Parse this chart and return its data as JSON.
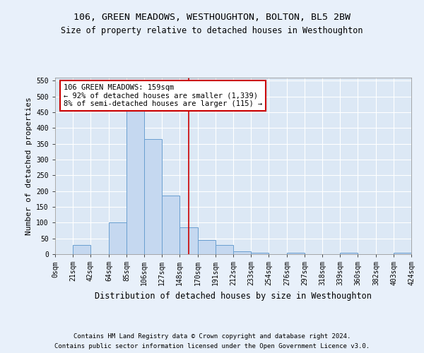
{
  "title": "106, GREEN MEADOWS, WESTHOUGHTON, BOLTON, BL5 2BW",
  "subtitle": "Size of property relative to detached houses in Westhoughton",
  "xlabel": "Distribution of detached houses by size in Westhoughton",
  "ylabel": "Number of detached properties",
  "footnote1": "Contains HM Land Registry data © Crown copyright and database right 2024.",
  "footnote2": "Contains public sector information licensed under the Open Government Licence v3.0.",
  "bin_edges": [
    0,
    21,
    42,
    64,
    85,
    106,
    127,
    148,
    170,
    191,
    212,
    233,
    254,
    276,
    297,
    318,
    339,
    360,
    382,
    403,
    424
  ],
  "bin_labels": [
    "0sqm",
    "21sqm",
    "42sqm",
    "64sqm",
    "85sqm",
    "106sqm",
    "127sqm",
    "148sqm",
    "170sqm",
    "191sqm",
    "212sqm",
    "233sqm",
    "254sqm",
    "276sqm",
    "297sqm",
    "318sqm",
    "339sqm",
    "360sqm",
    "382sqm",
    "403sqm",
    "424sqm"
  ],
  "bar_heights": [
    0,
    30,
    0,
    100,
    510,
    365,
    185,
    85,
    45,
    30,
    10,
    5,
    0,
    5,
    0,
    0,
    5,
    0,
    0,
    5
  ],
  "bar_color": "#c5d8f0",
  "bar_edge_color": "#6a9fd0",
  "property_line_x": 159,
  "property_line_color": "#cc0000",
  "annotation_text": "106 GREEN MEADOWS: 159sqm\n← 92% of detached houses are smaller (1,339)\n8% of semi-detached houses are larger (115) →",
  "annotation_box_color": "#ffffff",
  "annotation_box_edge": "#cc0000",
  "ylim": [
    0,
    560
  ],
  "yticks": [
    0,
    50,
    100,
    150,
    200,
    250,
    300,
    350,
    400,
    450,
    500,
    550
  ],
  "background_color": "#e8f0fa",
  "plot_background": "#dce8f5",
  "title_fontsize": 9.5,
  "subtitle_fontsize": 8.5,
  "ylabel_fontsize": 8,
  "xlabel_fontsize": 8.5,
  "tick_fontsize": 7,
  "annot_fontsize": 7.5,
  "footnote_fontsize": 6.5
}
